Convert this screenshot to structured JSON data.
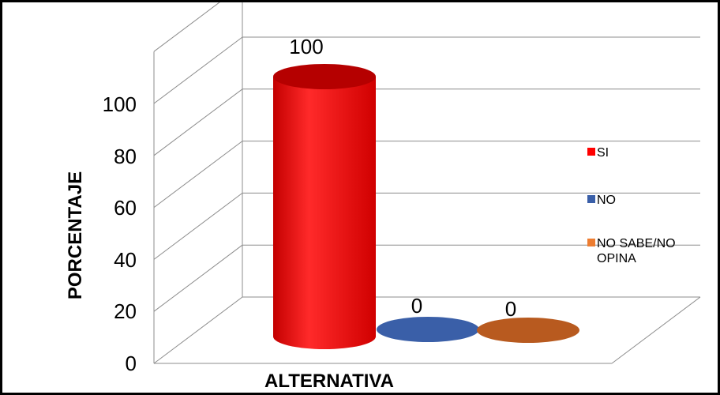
{
  "chart_data": {
    "type": "bar",
    "style": "3d-cylinder",
    "categories": [
      "SI",
      "NO",
      "NO SABE/NO OPINA"
    ],
    "values": [
      100,
      0,
      0
    ],
    "data_labels": [
      "100",
      "0",
      "0"
    ],
    "colors": [
      "#ff0000",
      "#3a5fa8",
      "#b85a1f"
    ],
    "legend": [
      {
        "label": "SI",
        "color": "#ff0000"
      },
      {
        "label": "NO",
        "color": "#3a5fa8"
      },
      {
        "label": "NO SABE/NO OPINA",
        "color": "#ed7d31"
      }
    ],
    "legend_position": "right",
    "xlabel": "ALTERNATIVA",
    "ylabel": "PORCENTAJE",
    "yticks": [
      "0",
      "20",
      "40",
      "60",
      "80",
      "100"
    ],
    "ylim": [
      0,
      120
    ],
    "grid": true
  }
}
